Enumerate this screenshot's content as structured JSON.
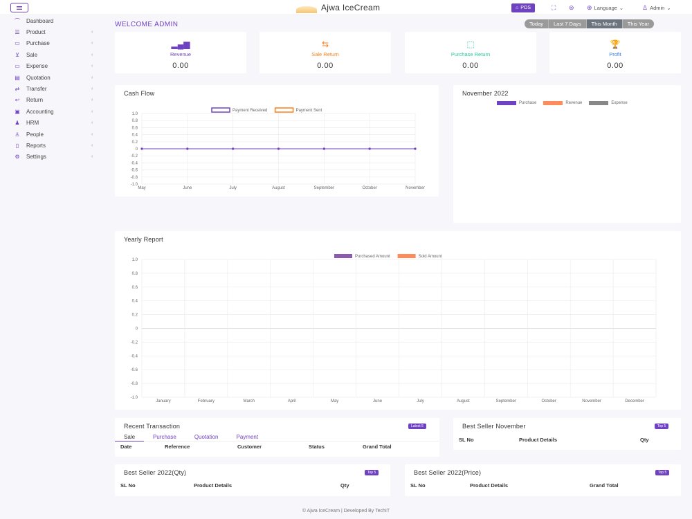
{
  "header": {
    "app_name": "Ajwa IceCream",
    "pos_label": "POS",
    "language_label": "Language",
    "user_label": "Admin"
  },
  "sidebar": {
    "items": [
      {
        "label": "Dashboard",
        "icon": "dashboard-icon",
        "glyph": "⌒"
      },
      {
        "label": "Product",
        "icon": "list-icon",
        "glyph": "☰"
      },
      {
        "label": "Purchase",
        "icon": "card-icon",
        "glyph": "▭"
      },
      {
        "label": "Sale",
        "icon": "cart-icon",
        "glyph": "⊻"
      },
      {
        "label": "Expense",
        "icon": "wallet-icon",
        "glyph": "▭"
      },
      {
        "label": "Quotation",
        "icon": "document-icon",
        "glyph": "▤"
      },
      {
        "label": "Transfer",
        "icon": "transfer-icon",
        "glyph": "⇄"
      },
      {
        "label": "Return",
        "icon": "return-icon",
        "glyph": "↩"
      },
      {
        "label": "Accounting",
        "icon": "briefcase-icon",
        "glyph": "▣"
      },
      {
        "label": "HRM",
        "icon": "users-icon",
        "glyph": "♟"
      },
      {
        "label": "People",
        "icon": "user-icon",
        "glyph": "♙"
      },
      {
        "label": "Reports",
        "icon": "report-icon",
        "glyph": "▯"
      },
      {
        "label": "Settings",
        "icon": "gear-icon",
        "glyph": "⚙"
      }
    ]
  },
  "welcome": "WELCOME ADMIN",
  "date_range": [
    "Today",
    "Last 7 Days",
    "This Month",
    "This Year"
  ],
  "stats": [
    {
      "label": "Revenue",
      "value": "0.00",
      "color": "#6f42c1",
      "icon": "bar-chart-icon",
      "glyph": "▂▄▆"
    },
    {
      "label": "Sale Return",
      "value": "0.00",
      "color": "#fd7e14",
      "icon": "return-arrow-icon",
      "glyph": "⇆"
    },
    {
      "label": "Purchase Return",
      "value": "0.00",
      "color": "#20c997",
      "icon": "purchase-return-icon",
      "glyph": "⬚"
    },
    {
      "label": "Profit",
      "value": "0.00",
      "color": "#2f7bea",
      "icon": "trophy-icon",
      "glyph": "🏆"
    }
  ],
  "cash_flow": {
    "title": "Cash Flow",
    "legend": [
      {
        "name": "Payment Received",
        "color": "#6f42c1"
      },
      {
        "name": "Payment Sent",
        "color": "#fd7e14"
      }
    ],
    "chart_data": {
      "type": "line",
      "title": "",
      "x": [
        "May",
        "June",
        "July",
        "August",
        "September",
        "October",
        "November"
      ],
      "series": [
        {
          "name": "Payment Received",
          "values": [
            0,
            0,
            0,
            0,
            0,
            0,
            0
          ]
        },
        {
          "name": "Payment Sent",
          "values": [
            0,
            0,
            0,
            0,
            0,
            0,
            0
          ]
        }
      ],
      "ylim": [
        -1.0,
        1.0
      ],
      "yticks": [
        "1.0",
        "0.8",
        "0.6",
        "0.4",
        "0.2",
        "0",
        "-0.2",
        "-0.4",
        "-0.6",
        "-0.8",
        "-1.0"
      ],
      "grid": true,
      "legend_position": "top"
    }
  },
  "month_card": {
    "title": "November 2022",
    "legend": [
      {
        "name": "Purchase",
        "color": "#6f42c1"
      },
      {
        "name": "Revenue",
        "color": "#fd8c5c"
      },
      {
        "name": "Expense",
        "color": "#888888"
      }
    ]
  },
  "yearly": {
    "title": "Yearly Report",
    "legend": [
      {
        "name": "Purchased Amount",
        "color": "#8c5bb0"
      },
      {
        "name": "Sold Amount",
        "color": "#fd8c5c"
      }
    ],
    "chart_data": {
      "type": "bar",
      "title": "",
      "categories": [
        "January",
        "February",
        "March",
        "April",
        "May",
        "June",
        "July",
        "August",
        "September",
        "October",
        "November",
        "December"
      ],
      "series": [
        {
          "name": "Purchased Amount",
          "values": [
            0,
            0,
            0,
            0,
            0,
            0,
            0,
            0,
            0,
            0,
            0,
            0
          ]
        },
        {
          "name": "Sold Amount",
          "values": [
            0,
            0,
            0,
            0,
            0,
            0,
            0,
            0,
            0,
            0,
            0,
            0
          ]
        }
      ],
      "ylim": [
        -1.0,
        1.0
      ],
      "yticks": [
        "1.0",
        "0.8",
        "0.6",
        "0.4",
        "0.2",
        "0",
        "-0.2",
        "-0.4",
        "-0.6",
        "-0.8",
        "-1.0"
      ],
      "grid": true,
      "legend_position": "top"
    }
  },
  "recent": {
    "title": "Recent Transaction",
    "badge": "Latest 5",
    "tabs": [
      "Sale",
      "Purchase",
      "Quotation",
      "Payment"
    ],
    "columns": [
      "Date",
      "Reference",
      "Customer",
      "Status",
      "Grand Total"
    ]
  },
  "best_month": {
    "title": "Best Seller November",
    "badge": "Top 5",
    "columns": [
      "SL No",
      "Product Details",
      "Qty"
    ]
  },
  "best_qty": {
    "title": "Best Seller 2022(Qty)",
    "badge": "Top 5",
    "columns": [
      "SL No",
      "Product Details",
      "Qty"
    ]
  },
  "best_price": {
    "title": "Best Seller 2022(Price)",
    "badge": "Top 5",
    "columns": [
      "SL No",
      "Product Details",
      "Grand Total"
    ]
  },
  "footer": "© Ajwa IceCream | Developed By TechIT"
}
